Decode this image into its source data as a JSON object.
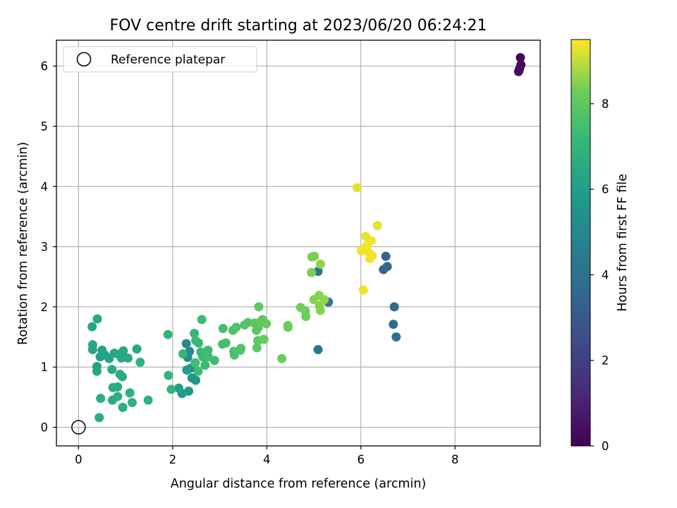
{
  "chart_data": {
    "type": "scatter",
    "title": "FOV centre drift starting at 2023/06/20 06:24:21",
    "xlabel": "Angular distance from reference (arcmin)",
    "ylabel": "Rotation from reference (arcmin)",
    "xlim": [
      -0.47,
      9.81
    ],
    "ylim": [
      -0.31,
      6.43
    ],
    "xticks": [
      0,
      2,
      4,
      6,
      8
    ],
    "yticks": [
      0,
      1,
      2,
      3,
      4,
      5,
      6
    ],
    "grid": true,
    "legend": {
      "position": "upper-left",
      "entries": [
        "Reference platepar"
      ]
    },
    "colorbar": {
      "label": "Hours from first FF file",
      "colormap": "viridis",
      "range": [
        0,
        9.5
      ],
      "ticks": [
        0,
        2,
        4,
        6,
        8
      ]
    },
    "reference": {
      "name": "Reference platepar",
      "x": 0,
      "y": 0
    },
    "points": [
      [
        9.39,
        6.14,
        0.1
      ],
      [
        9.4,
        6.02,
        0.2
      ],
      [
        9.37,
        5.95,
        0.3
      ],
      [
        9.35,
        5.91,
        0.4
      ],
      [
        6.53,
        2.84,
        3.4
      ],
      [
        6.48,
        2.62,
        3.5
      ],
      [
        6.56,
        2.67,
        3.6
      ],
      [
        6.71,
        2.0,
        3.7
      ],
      [
        6.69,
        1.71,
        3.8
      ],
      [
        6.75,
        1.5,
        3.9
      ],
      [
        5.31,
        2.08,
        4.0
      ],
      [
        5.09,
        2.59,
        4.2
      ],
      [
        5.09,
        1.29,
        4.3
      ],
      [
        2.29,
        1.39,
        5.1
      ],
      [
        2.36,
        1.26,
        5.2
      ],
      [
        2.32,
        1.16,
        5.3
      ],
      [
        2.38,
        0.98,
        5.4
      ],
      [
        2.41,
        0.82,
        5.5
      ],
      [
        2.49,
        0.78,
        5.6
      ],
      [
        2.34,
        0.6,
        5.7
      ],
      [
        2.2,
        0.56,
        5.8
      ],
      [
        2.13,
        0.65,
        6.0
      ],
      [
        2.3,
        0.95,
        6.0
      ],
      [
        0.5,
        1.28,
        6.1
      ],
      [
        0.46,
        1.17,
        6.1
      ],
      [
        0.56,
        1.2,
        6.2
      ],
      [
        0.65,
        1.14,
        6.2
      ],
      [
        0.39,
        1.01,
        6.2
      ],
      [
        0.39,
        0.93,
        6.3
      ],
      [
        0.3,
        1.29,
        6.3
      ],
      [
        0.3,
        1.37,
        6.3
      ],
      [
        0.29,
        1.67,
        6.3
      ],
      [
        0.4,
        1.8,
        6.4
      ],
      [
        0.76,
        1.23,
        6.4
      ],
      [
        0.85,
        1.21,
        6.4
      ],
      [
        0.91,
        1.15,
        6.4
      ],
      [
        0.95,
        1.27,
        6.4
      ],
      [
        1.05,
        1.15,
        6.5
      ],
      [
        1.24,
        1.3,
        6.5
      ],
      [
        0.71,
        0.96,
        6.5
      ],
      [
        0.88,
        0.88,
        6.5
      ],
      [
        0.93,
        0.84,
        6.6
      ],
      [
        0.73,
        0.66,
        6.6
      ],
      [
        0.83,
        0.67,
        6.6
      ],
      [
        0.72,
        0.45,
        6.6
      ],
      [
        0.83,
        0.51,
        6.7
      ],
      [
        0.47,
        0.48,
        6.7
      ],
      [
        0.94,
        0.33,
        6.7
      ],
      [
        0.44,
        0.16,
        6.7
      ],
      [
        1.09,
        0.57,
        6.8
      ],
      [
        1.14,
        0.41,
        6.8
      ],
      [
        1.31,
        1.08,
        6.9
      ],
      [
        1.48,
        0.45,
        6.9
      ],
      [
        1.9,
        1.54,
        7.0
      ],
      [
        1.91,
        0.86,
        7.0
      ],
      [
        1.97,
        0.63,
        7.0
      ],
      [
        2.22,
        1.22,
        7.1
      ],
      [
        2.46,
        1.56,
        7.1
      ],
      [
        2.49,
        1.44,
        7.2
      ],
      [
        2.55,
        1.4,
        7.2
      ],
      [
        2.6,
        1.25,
        7.2
      ],
      [
        2.64,
        1.17,
        7.3
      ],
      [
        2.62,
        1.79,
        7.3
      ],
      [
        2.75,
        1.28,
        7.3
      ],
      [
        2.69,
        1.03,
        7.3
      ],
      [
        2.54,
        0.93,
        7.3
      ],
      [
        2.48,
        1.07,
        7.4
      ],
      [
        2.76,
        1.17,
        7.4
      ],
      [
        2.89,
        1.11,
        7.4
      ],
      [
        3.07,
        1.64,
        7.5
      ],
      [
        3.06,
        1.38,
        7.5
      ],
      [
        3.13,
        1.4,
        7.5
      ],
      [
        3.28,
        1.61,
        7.6
      ],
      [
        3.3,
        1.26,
        7.6
      ],
      [
        3.31,
        1.2,
        7.6
      ],
      [
        3.35,
        1.66,
        7.7
      ],
      [
        3.45,
        1.31,
        7.7
      ],
      [
        3.44,
        1.28,
        7.7
      ],
      [
        3.53,
        1.7,
        7.8
      ],
      [
        3.6,
        1.74,
        7.8
      ],
      [
        3.74,
        1.73,
        7.9
      ],
      [
        3.78,
        1.61,
        7.9
      ],
      [
        3.82,
        1.66,
        7.9
      ],
      [
        3.85,
        1.74,
        8.0
      ],
      [
        3.83,
        2.0,
        8.0
      ],
      [
        3.91,
        1.79,
        8.0
      ],
      [
        3.79,
        1.32,
        8.0
      ],
      [
        3.81,
        1.44,
        8.0
      ],
      [
        3.94,
        1.46,
        8.1
      ],
      [
        3.99,
        1.72,
        8.1
      ],
      [
        4.32,
        1.14,
        8.2
      ],
      [
        4.45,
        1.66,
        8.2
      ],
      [
        4.45,
        1.69,
        8.2
      ],
      [
        4.72,
        1.99,
        8.3
      ],
      [
        4.82,
        1.93,
        8.3
      ],
      [
        4.83,
        1.84,
        8.3
      ],
      [
        4.96,
        2.83,
        8.4
      ],
      [
        5.01,
        2.84,
        8.4
      ],
      [
        4.95,
        2.57,
        8.4
      ],
      [
        5.0,
        2.12,
        8.5
      ],
      [
        5.11,
        2.19,
        8.5
      ],
      [
        5.14,
        1.94,
        8.5
      ],
      [
        5.12,
        2.02,
        8.5
      ],
      [
        5.22,
        2.12,
        8.6
      ],
      [
        5.14,
        2.71,
        8.6
      ],
      [
        5.92,
        3.98,
        9.3
      ],
      [
        6.35,
        3.35,
        9.3
      ],
      [
        6.1,
        3.17,
        9.3
      ],
      [
        6.13,
        3.02,
        9.4
      ],
      [
        6.01,
        2.93,
        9.4
      ],
      [
        6.22,
        3.1,
        9.4
      ],
      [
        6.17,
        2.9,
        9.4
      ],
      [
        6.19,
        2.8,
        9.4
      ],
      [
        6.24,
        2.85,
        9.4
      ],
      [
        6.05,
        2.28,
        9.4
      ],
      [
        6.09,
        2.97,
        9.4
      ]
    ]
  }
}
